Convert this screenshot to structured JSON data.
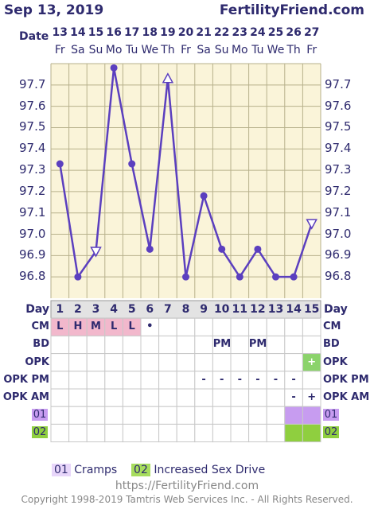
{
  "header": {
    "date": "Sep 13, 2019",
    "brand": "FertilityFriend.com",
    "date_label": "Date"
  },
  "chart_data": {
    "type": "line",
    "dates": [
      "13",
      "14",
      "15",
      "16",
      "17",
      "18",
      "19",
      "20",
      "21",
      "22",
      "23",
      "24",
      "25",
      "26",
      "27"
    ],
    "weekdays": [
      "Fr",
      "Sa",
      "Su",
      "Mo",
      "Tu",
      "We",
      "Th",
      "Fr",
      "Sa",
      "Su",
      "Mo",
      "Tu",
      "We",
      "Th",
      "Fr"
    ],
    "cycle_days": [
      "1",
      "2",
      "3",
      "4",
      "5",
      "6",
      "7",
      "8",
      "9",
      "10",
      "11",
      "12",
      "13",
      "14",
      "15"
    ],
    "temperatures": [
      97.33,
      96.8,
      96.92,
      97.78,
      97.33,
      96.93,
      97.73,
      96.8,
      97.18,
      96.93,
      96.8,
      96.93,
      96.8,
      96.8,
      97.05
    ],
    "markers": [
      "dot",
      "dot",
      "triangle-down",
      "dot",
      "dot",
      "dot",
      "triangle-up",
      "dot",
      "dot",
      "dot",
      "dot",
      "dot",
      "dot",
      "dot",
      "triangle-down"
    ],
    "y_ticks": [
      "97.7",
      "97.6",
      "97.5",
      "97.4",
      "97.3",
      "97.2",
      "97.1",
      "97.0",
      "96.9",
      "96.8"
    ],
    "ylim": [
      96.7,
      97.85
    ],
    "line_color": "#5b3fbf"
  },
  "table": {
    "day_label": "Day",
    "rows": [
      {
        "label": "CM",
        "cells": [
          "L",
          "H",
          "M",
          "L",
          "L",
          "•",
          "",
          "",
          "",
          "",
          "",
          "",
          "",
          "",
          ""
        ]
      },
      {
        "label": "BD",
        "cells": [
          "",
          "",
          "",
          "",
          "",
          "",
          "",
          "",
          "",
          "PM",
          "",
          "PM",
          "",
          "",
          ""
        ]
      },
      {
        "label": "OPK",
        "cells": [
          "",
          "",
          "",
          "",
          "",
          "",
          "",
          "",
          "",
          "",
          "",
          "",
          "",
          "",
          "+"
        ]
      },
      {
        "label": "OPK PM",
        "cells": [
          "",
          "",
          "",
          "",
          "",
          "",
          "",
          "",
          "-",
          "-",
          "-",
          "-",
          "-",
          "-",
          ""
        ]
      },
      {
        "label": "OPK AM",
        "cells": [
          "",
          "",
          "",
          "",
          "",
          "",
          "",
          "",
          "",
          "",
          "",
          "",
          "",
          "-",
          "+"
        ]
      },
      {
        "label": "01",
        "cells": [
          "",
          "",
          "",
          "",
          "",
          "",
          "",
          "",
          "",
          "",
          "",
          "",
          "",
          "",
          ""
        ]
      },
      {
        "label": "02",
        "cells": [
          "",
          "",
          "",
          "",
          "",
          "",
          "",
          "",
          "",
          "",
          "",
          "",
          "",
          "",
          ""
        ]
      }
    ]
  },
  "legend": {
    "item1_code": "01",
    "item1_label": "Cramps",
    "item2_code": "02",
    "item2_label": "Increased Sex Drive"
  },
  "footer": {
    "url": "https://FertilityFriend.com",
    "copyright": "Copyright 1998-2019 Tamtris Web Services Inc. - All Rights Reserved."
  },
  "colors": {
    "chart_bg": "#faf4d9",
    "grid": "#b7b18c",
    "cm_pink": "#f2b8cc",
    "opk_green": "#8bd36b",
    "row01_purple": "#c79cf0",
    "row02_green": "#8fcf3f",
    "day_header_bg": "#e3e3e3",
    "text": "#2e2a6e"
  }
}
